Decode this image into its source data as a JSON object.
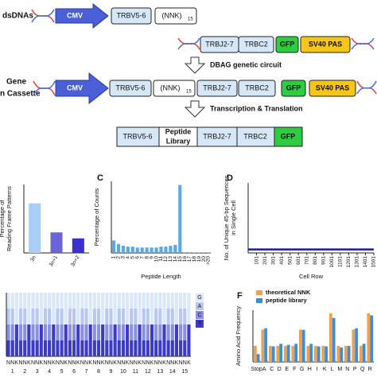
{
  "diagram": {
    "row1_label": "dsDNAs",
    "row3_label_1": "Gene",
    "row3_label_2": "n Cassette",
    "step1": "DBAG genetic circuit",
    "step2": "Transcription & Translation",
    "parts": {
      "cmv": "CMV",
      "trbv": "TRBV5-6",
      "nnk": "(NNK)",
      "nnk_sub": "15",
      "trbj": "TRBJ2-7",
      "trbc": "TRBC2",
      "gfp": "GFP",
      "sv40": "SV40 PAS",
      "peptide_1": "Peptide",
      "peptide_2": "Library"
    }
  },
  "chart_data": [
    {
      "type": "bar",
      "y_label": [
        "Percentage of",
        "Reading Frame Patterns"
      ],
      "categories": [
        "3n",
        "3n+1",
        "3n+2"
      ],
      "values": [
        58,
        24,
        17
      ],
      "colors": [
        "#a9cdf5",
        "#6a64d8",
        "#3a2fd0"
      ],
      "ylim": [
        0,
        80
      ]
    },
    {
      "type": "bar",
      "panel": "C",
      "y_label": [
        "Percentage of Counts"
      ],
      "x_label": "Peptide Length",
      "categories": [
        "1",
        "2",
        "3",
        "4",
        "5",
        "6",
        "7",
        "8",
        "9",
        "10",
        "11",
        "12",
        "13",
        "14",
        "15",
        "16",
        "17",
        "18",
        "19",
        "20",
        ">20"
      ],
      "values": [
        7,
        5,
        4,
        3.5,
        3.5,
        3,
        3,
        3,
        3,
        3,
        3.5,
        3.5,
        4,
        4.5,
        38,
        0.3,
        0.2,
        0.2,
        0.2,
        0.2,
        0.2
      ],
      "color": "#5aa9e6",
      "ylim": [
        0,
        40
      ]
    },
    {
      "type": "line",
      "panel": "D",
      "y_label": [
        "No. of Unique 45-bp Sequences",
        "in Single Cell"
      ],
      "x_label": "Cell Row",
      "x": [
        1,
        1500
      ],
      "series": [
        {
          "color": "#1a1aa8",
          "values": [
            1,
            1
          ]
        }
      ],
      "xlim": [
        1,
        1501
      ],
      "xticks": [
        101,
        201,
        301,
        401,
        501,
        601,
        701,
        801,
        901,
        1001,
        1101,
        1201,
        1301,
        1401,
        1501
      ],
      "ylim": [
        0,
        20
      ]
    },
    {
      "type": "stacked",
      "ylim": [
        0,
        100
      ],
      "categories": [
        "N",
        "N",
        "K",
        "N",
        "N",
        "K",
        "N",
        "N",
        "K",
        "N",
        "N",
        "K",
        "N",
        "N",
        "K",
        "N",
        "N",
        "K",
        "N",
        "N",
        "K",
        "N",
        "N",
        "K",
        "N",
        "N",
        "K",
        "N",
        "N",
        "K",
        "N",
        "N",
        "K",
        "N",
        "N",
        "K",
        "N",
        "N",
        "K",
        "N",
        "N",
        "K",
        "N",
        "N",
        "K"
      ],
      "codon_labels": [
        "1",
        "2",
        "3",
        "4",
        "5",
        "6",
        "7",
        "8",
        "9",
        "10",
        "11",
        "12",
        "13",
        "14",
        "15"
      ],
      "series": [
        {
          "name": "G",
          "color": "#dbe8f7",
          "values": [
            25,
            25,
            50,
            25,
            25,
            50,
            25,
            25,
            50,
            25,
            25,
            50,
            25,
            25,
            50,
            25,
            25,
            50,
            25,
            25,
            50,
            25,
            25,
            50,
            25,
            25,
            50,
            25,
            25,
            50,
            25,
            25,
            50,
            25,
            25,
            50,
            25,
            25,
            50,
            25,
            25,
            50,
            25,
            25,
            50
          ]
        },
        {
          "name": "A",
          "color": "#b9c8f0",
          "values": [
            25,
            25,
            0,
            25,
            25,
            0,
            25,
            25,
            0,
            25,
            25,
            0,
            25,
            25,
            0,
            25,
            25,
            0,
            25,
            25,
            0,
            25,
            25,
            0,
            25,
            25,
            0,
            25,
            25,
            0,
            25,
            25,
            0,
            25,
            25,
            0,
            25,
            25,
            0,
            25,
            25,
            0,
            25,
            25,
            0
          ]
        },
        {
          "name": "C",
          "color": "#8b8fe0",
          "values": [
            25,
            25,
            0,
            25,
            25,
            0,
            25,
            25,
            0,
            25,
            25,
            0,
            25,
            25,
            0,
            25,
            25,
            0,
            25,
            25,
            0,
            25,
            25,
            0,
            25,
            25,
            0,
            25,
            25,
            0,
            25,
            25,
            0,
            25,
            25,
            0,
            25,
            25,
            0,
            25,
            25,
            0,
            25,
            25,
            0
          ]
        },
        {
          "name": "T",
          "color": "#3b3bc8",
          "values": [
            25,
            25,
            50,
            25,
            25,
            50,
            25,
            25,
            50,
            25,
            25,
            50,
            25,
            25,
            50,
            25,
            25,
            50,
            25,
            25,
            50,
            25,
            25,
            50,
            25,
            25,
            50,
            25,
            25,
            50,
            25,
            25,
            50,
            25,
            25,
            50,
            25,
            25,
            50,
            25,
            25,
            50,
            25,
            25,
            50
          ]
        }
      ]
    },
    {
      "type": "grouped",
      "panel": "F",
      "y_label": [
        "Amino Acid Frequency"
      ],
      "categories": [
        "Stop",
        "A",
        "C",
        "D",
        "E",
        "F",
        "G",
        "H",
        "I",
        "K",
        "L",
        "M",
        "N",
        "P",
        "Q",
        "R"
      ],
      "series": [
        {
          "name": "theoretical NNK",
          "color": "#f0a050",
          "values": [
            3.1,
            6.25,
            3.1,
            3.1,
            3.1,
            3.1,
            6.25,
            3.1,
            3.1,
            3.1,
            9.4,
            3.1,
            3.1,
            6.25,
            3.1,
            9.4
          ]
        },
        {
          "name": "peptide library",
          "color": "#3a8fd8",
          "values": [
            1.5,
            6.5,
            3.0,
            3.5,
            3.3,
            3.5,
            6.2,
            3.5,
            3.0,
            3.0,
            8.5,
            2.8,
            3.1,
            6.5,
            3.5,
            9.0
          ]
        }
      ],
      "ylim": [
        0,
        10
      ]
    }
  ]
}
